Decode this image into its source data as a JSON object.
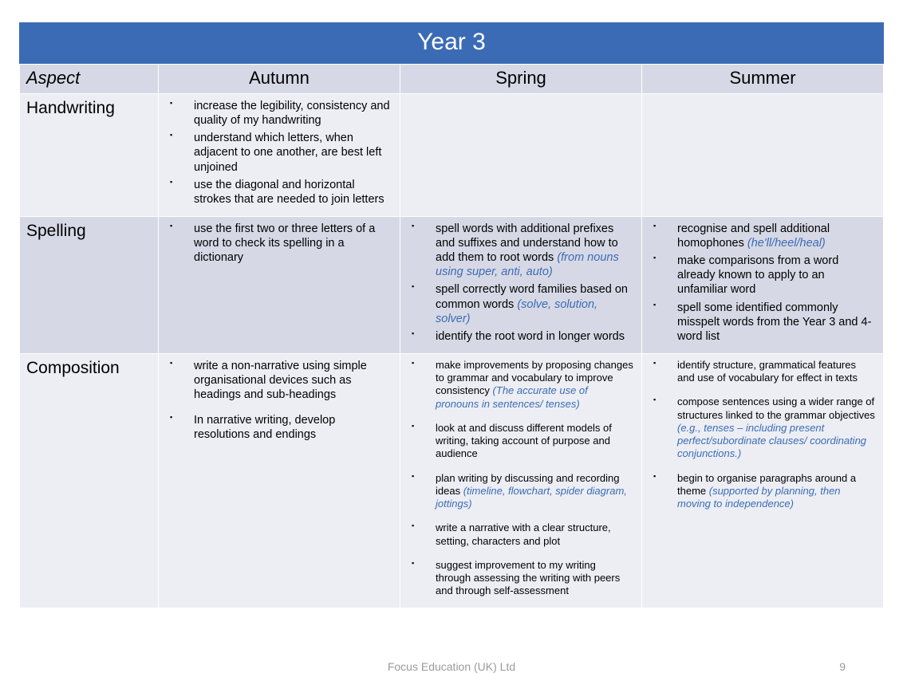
{
  "title": "Year 3",
  "headers": {
    "aspect": "Aspect",
    "terms": [
      "Autumn",
      "Spring",
      "Summer"
    ]
  },
  "rows": [
    {
      "label": "Handwriting",
      "band": "A",
      "size": "normal",
      "cells": [
        [
          {
            "text": "increase the legibility, consistency and quality of my handwriting"
          },
          {
            "text": "understand which letters, when adjacent to one another, are best left unjoined"
          },
          {
            "text": "use the diagonal and horizontal strokes that are needed to join letters"
          }
        ],
        [],
        []
      ]
    },
    {
      "label": "Spelling",
      "band": "B",
      "size": "normal",
      "cells": [
        [
          {
            "text": "use the first two or three letters of a word to check its spelling in a dictionary"
          }
        ],
        [
          {
            "text": "spell words with additional prefixes and suffixes and understand how to add them to root words ",
            "hint": "(from nouns using super, anti, auto)"
          },
          {
            "text": "spell correctly word families based on common words ",
            "hint": "(solve, solution, solver)"
          },
          {
            "text": "identify the root word in longer words"
          }
        ],
        [
          {
            "text": "recognise and spell additional homophones ",
            "hint": "(he'll/heel/heal)"
          },
          {
            "text": "make comparisons from a word already known to apply to an unfamiliar word"
          },
          {
            "text": "spell some identified commonly misspelt words from the Year 3 and 4-word list"
          }
        ]
      ]
    },
    {
      "label": "Composition",
      "band": "A",
      "size": "mixed",
      "cells": [
        [
          {
            "text": "write a non-narrative using simple organisational devices such as headings and sub-headings"
          },
          {
            "gap": true
          },
          {
            "text": "In narrative writing, develop resolutions and endings"
          }
        ],
        [
          {
            "text": "make improvements by proposing changes to grammar and vocabulary to improve consistency ",
            "hint": "(The accurate use of pronouns in sentences/ tenses)"
          },
          {
            "gap": true
          },
          {
            "text": "look at and discuss different models of writing, taking account of purpose and audience"
          },
          {
            "gap": true
          },
          {
            "text": "plan writing by discussing and recording ideas ",
            "hint": "(timeline, flowchart, spider diagram, jottings)"
          },
          {
            "gap": true
          },
          {
            "text": "write a narrative with a clear structure, setting, characters and plot"
          },
          {
            "gap": true
          },
          {
            "text": "suggest improvement to my writing through assessing the writing with peers and through self-assessment"
          }
        ],
        [
          {
            "text": "identify structure, grammatical features and use of vocabulary for effect in texts"
          },
          {
            "gap": true
          },
          {
            "text": "compose sentences using a wider range of structures linked to the grammar objectives ",
            "hint": "(e.g., tenses – including present perfect/subordinate clauses/ coordinating conjunctions.)"
          },
          {
            "gap": true
          },
          {
            "text": "begin to organise paragraphs around a theme ",
            "hint": "(supported by planning, then moving to independence)"
          }
        ]
      ]
    }
  ],
  "colors": {
    "title_bg": "#3b6bb5",
    "title_fg": "#ffffff",
    "header_bg": "#d6d9e5",
    "bandA_bg": "#eceef4",
    "bandB_bg": "#d6d9e5",
    "hint_fg": "#3b6bb5",
    "footer_fg": "#9a9a9a"
  },
  "footer": {
    "org": "Focus Education (UK) Ltd",
    "page_number": "9"
  }
}
